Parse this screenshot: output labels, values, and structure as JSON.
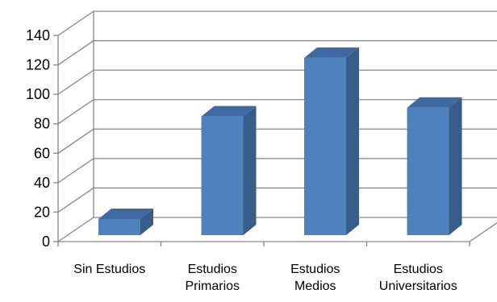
{
  "chart_data": {
    "type": "bar",
    "categories": [
      [
        "Sin Estudios"
      ],
      [
        "Estudios",
        "Primarios"
      ],
      [
        "Estudios",
        "Medios"
      ],
      [
        "Estudios",
        "Universitarios"
      ]
    ],
    "values": [
      11,
      81,
      121,
      87
    ],
    "ylim": [
      0,
      140
    ],
    "yticks": [
      "0",
      "20",
      "40",
      "60",
      "80",
      "100",
      "120",
      "140"
    ],
    "grid": true,
    "title": "",
    "xlabel": "",
    "ylabel": "",
    "colors": {
      "bar_front": "#4f81bd",
      "bar_side": "#385d8a",
      "bar_top": "#3e6aa1",
      "grid": "#868686",
      "axis": "#868686"
    }
  }
}
